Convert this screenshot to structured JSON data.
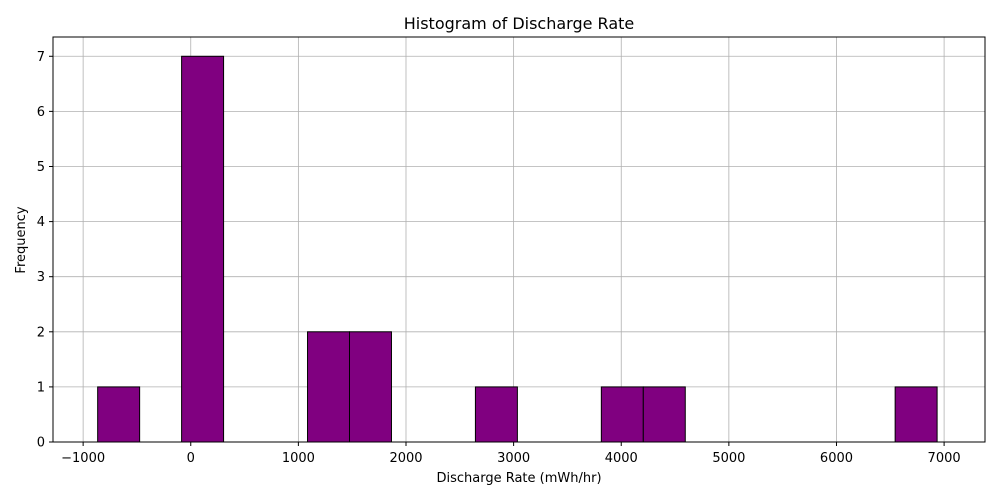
{
  "chart_data": {
    "type": "bar",
    "title": "Histogram of Discharge Rate",
    "xlabel": "Discharge Rate (mWh/hr)",
    "ylabel": "Frequency",
    "xlim": [
      -1280,
      7380
    ],
    "ylim": [
      0,
      7.35
    ],
    "grid": true,
    "bar_color": "#800080",
    "edge_color": "#000000",
    "grid_color": "#b0b0b0",
    "x_ticks": [
      -1000,
      0,
      1000,
      2000,
      3000,
      4000,
      5000,
      6000,
      7000
    ],
    "y_ticks": [
      0,
      1,
      2,
      3,
      4,
      5,
      6,
      7
    ],
    "bins": [
      {
        "start": -865,
        "end": -475,
        "count": 1
      },
      {
        "start": -475,
        "end": -85,
        "count": 0
      },
      {
        "start": -85,
        "end": 305,
        "count": 7
      },
      {
        "start": 305,
        "end": 695,
        "count": 0
      },
      {
        "start": 695,
        "end": 1085,
        "count": 0
      },
      {
        "start": 1085,
        "end": 1475,
        "count": 2
      },
      {
        "start": 1475,
        "end": 1865,
        "count": 2
      },
      {
        "start": 1865,
        "end": 2255,
        "count": 0
      },
      {
        "start": 2255,
        "end": 2645,
        "count": 0
      },
      {
        "start": 2645,
        "end": 3035,
        "count": 1
      },
      {
        "start": 3035,
        "end": 3425,
        "count": 0
      },
      {
        "start": 3425,
        "end": 3815,
        "count": 0
      },
      {
        "start": 3815,
        "end": 4205,
        "count": 1
      },
      {
        "start": 4205,
        "end": 4595,
        "count": 1
      },
      {
        "start": 4595,
        "end": 4985,
        "count": 0
      },
      {
        "start": 4985,
        "end": 5375,
        "count": 0
      },
      {
        "start": 5375,
        "end": 5765,
        "count": 0
      },
      {
        "start": 5765,
        "end": 6155,
        "count": 0
      },
      {
        "start": 6155,
        "end": 6545,
        "count": 0
      },
      {
        "start": 6545,
        "end": 6935,
        "count": 1
      }
    ]
  }
}
